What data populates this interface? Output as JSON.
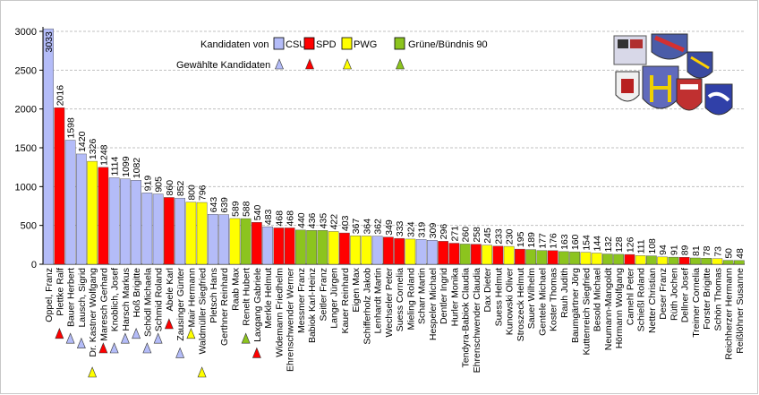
{
  "chart_data": {
    "type": "bar",
    "title": "",
    "xlabel": "",
    "ylabel": "",
    "ylim": [
      0,
      3000
    ],
    "yticks": [
      0,
      500,
      1000,
      1500,
      2000,
      2500,
      3000
    ],
    "grid": true,
    "legend_position": "top-center",
    "legend": {
      "header_parties": "Kandidaten von",
      "header_elected": "Gewählte Kandidaten",
      "parties": [
        {
          "key": "CSU",
          "label": "CSU",
          "color": "#b4bcf8"
        },
        {
          "key": "SPD",
          "label": "SPD",
          "color": "#ff0000"
        },
        {
          "key": "PWG",
          "label": "PWG",
          "color": "#ffff00"
        },
        {
          "key": "GRUENE",
          "label": "Grüne/Bündnis 90",
          "color": "#8cc41e"
        }
      ]
    },
    "bars": [
      {
        "name": "Oppel, Franz",
        "value": 3033,
        "party": "CSU",
        "elected": false
      },
      {
        "name": "Plettke Ralf",
        "value": 2016,
        "party": "SPD",
        "elected": true
      },
      {
        "name": "Bauer Herbert",
        "value": 1598,
        "party": "CSU",
        "elected": true
      },
      {
        "name": "Lausch, Sigrid",
        "value": 1420,
        "party": "CSU",
        "elected": true
      },
      {
        "name": "Dr. Kastner Wolfgang",
        "value": 1326,
        "party": "PWG",
        "elected": true
      },
      {
        "name": "Maresch Gerhard",
        "value": 1248,
        "party": "SPD",
        "elected": true
      },
      {
        "name": "Knoblich, Josef",
        "value": 1114,
        "party": "CSU",
        "elected": true
      },
      {
        "name": "Harsch Markus",
        "value": 1099,
        "party": "CSU",
        "elected": true
      },
      {
        "name": "Hoß Brigitte",
        "value": 1082,
        "party": "CSU",
        "elected": true
      },
      {
        "name": "Schödl Michaela",
        "value": 919,
        "party": "CSU",
        "elected": true
      },
      {
        "name": "Schmid Roland",
        "value": 905,
        "party": "CSU",
        "elected": true
      },
      {
        "name": "Abele Karl",
        "value": 860,
        "party": "SPD",
        "elected": true
      },
      {
        "name": "Zausinger Günter",
        "value": 852,
        "party": "CSU",
        "elected": true
      },
      {
        "name": "Mair Hermann",
        "value": 800,
        "party": "PWG",
        "elected": true
      },
      {
        "name": "Waldmüller Siegfried",
        "value": 796,
        "party": "PWG",
        "elected": true
      },
      {
        "name": "Pletsch Hans",
        "value": 643,
        "party": "CSU",
        "elected": false
      },
      {
        "name": "Gerthner Reinhard",
        "value": 639,
        "party": "CSU",
        "elected": false
      },
      {
        "name": "Raab Max",
        "value": 589,
        "party": "PWG",
        "elected": false
      },
      {
        "name": "Renelt Hubert",
        "value": 588,
        "party": "GRUENE",
        "elected": true
      },
      {
        "name": "Laxgang Gabriele",
        "value": 540,
        "party": "SPD",
        "elected": true
      },
      {
        "name": "Merkle Helmut",
        "value": 483,
        "party": "CSU",
        "elected": false
      },
      {
        "name": "Widemann Friedhelm",
        "value": 468,
        "party": "SPD",
        "elected": false
      },
      {
        "name": "Ehrenschwender Werner",
        "value": 468,
        "party": "SPD",
        "elected": false
      },
      {
        "name": "Messmer Franz",
        "value": 440,
        "party": "GRUENE",
        "elected": false
      },
      {
        "name": "Babiok Karl-Heinz",
        "value": 436,
        "party": "GRUENE",
        "elected": false
      },
      {
        "name": "Seitler Franz",
        "value": 435,
        "party": "GRUENE",
        "elected": false
      },
      {
        "name": "Langer Jürgen",
        "value": 422,
        "party": "PWG",
        "elected": false
      },
      {
        "name": "Kauer Reinhard",
        "value": 403,
        "party": "SPD",
        "elected": false
      },
      {
        "name": "Eigen Max",
        "value": 367,
        "party": "PWG",
        "elected": false
      },
      {
        "name": "Schifferholz Jakob",
        "value": 364,
        "party": "PWG",
        "elected": false
      },
      {
        "name": "Lenhardt Martin",
        "value": 362,
        "party": "CSU",
        "elected": false
      },
      {
        "name": "Wechseler Peter",
        "value": 349,
        "party": "SPD",
        "elected": false
      },
      {
        "name": "Suess Cornelia",
        "value": 333,
        "party": "SPD",
        "elected": false
      },
      {
        "name": "Mieling Roland",
        "value": 324,
        "party": "PWG",
        "elected": false
      },
      {
        "name": "Scharr Martin",
        "value": 319,
        "party": "CSU",
        "elected": false
      },
      {
        "name": "Hespeler Michael",
        "value": 309,
        "party": "CSU",
        "elected": false
      },
      {
        "name": "Dentler Ingrid",
        "value": 296,
        "party": "SPD",
        "elected": false
      },
      {
        "name": "Hurler Monika",
        "value": 271,
        "party": "SPD",
        "elected": false
      },
      {
        "name": "Tendyra-Babiok Claudia",
        "value": 260,
        "party": "GRUENE",
        "elected": false
      },
      {
        "name": "Ehrenschwender Claudia",
        "value": 258,
        "party": "SPD",
        "elected": false
      },
      {
        "name": "Dax Dieter",
        "value": 245,
        "party": "PWG",
        "elected": false
      },
      {
        "name": "Suess Helmut",
        "value": 233,
        "party": "SPD",
        "elected": false
      },
      {
        "name": "Kunowski Oliver",
        "value": 230,
        "party": "PWG",
        "elected": false
      },
      {
        "name": "Stroszeck Helmut",
        "value": 195,
        "party": "SPD",
        "elected": false
      },
      {
        "name": "Sauer Wilhelm",
        "value": 189,
        "party": "GRUENE",
        "elected": false
      },
      {
        "name": "Gentele Michael",
        "value": 177,
        "party": "GRUENE",
        "elected": false
      },
      {
        "name": "Koster Thomas",
        "value": 176,
        "party": "SPD",
        "elected": false
      },
      {
        "name": "Rauh Judith",
        "value": 163,
        "party": "GRUENE",
        "elected": false
      },
      {
        "name": "Baumgärtner Jörg",
        "value": 160,
        "party": "GRUENE",
        "elected": false
      },
      {
        "name": "Kuttenreich Siegfried",
        "value": 154,
        "party": "PWG",
        "elected": false
      },
      {
        "name": "Besold Michael",
        "value": 144,
        "party": "PWG",
        "elected": false
      },
      {
        "name": "Neumann-Mangoldt",
        "value": 132,
        "party": "GRUENE",
        "elected": false
      },
      {
        "name": "Hörmann Wolfgang",
        "value": 128,
        "party": "GRUENE",
        "elected": false
      },
      {
        "name": "Camehl Peter",
        "value": 126,
        "party": "SPD",
        "elected": false
      },
      {
        "name": "Schießl Roland",
        "value": 111,
        "party": "PWG",
        "elected": false
      },
      {
        "name": "Netter Christian",
        "value": 108,
        "party": "GRUENE",
        "elected": false
      },
      {
        "name": "Deser Franz",
        "value": 94,
        "party": "PWG",
        "elected": false
      },
      {
        "name": "Rüth Jochen",
        "value": 91,
        "party": "GRUENE",
        "elected": false
      },
      {
        "name": "Dellner Josef",
        "value": 89,
        "party": "SPD",
        "elected": false
      },
      {
        "name": "Treimer Cornelia",
        "value": 81,
        "party": "GRUENE",
        "elected": false
      },
      {
        "name": "Forster Brigitte",
        "value": 78,
        "party": "GRUENE",
        "elected": false
      },
      {
        "name": "Schön Thomas",
        "value": 73,
        "party": "PWG",
        "elected": false
      },
      {
        "name": "Reichherzer Hermann",
        "value": 50,
        "party": "GRUENE",
        "elected": false
      },
      {
        "name": "Reißlöhner Susanne",
        "value": 48,
        "party": "GRUENE",
        "elected": false
      }
    ]
  },
  "icons": {
    "coat_of_arms": "municipal-coats-of-arms-icon"
  }
}
